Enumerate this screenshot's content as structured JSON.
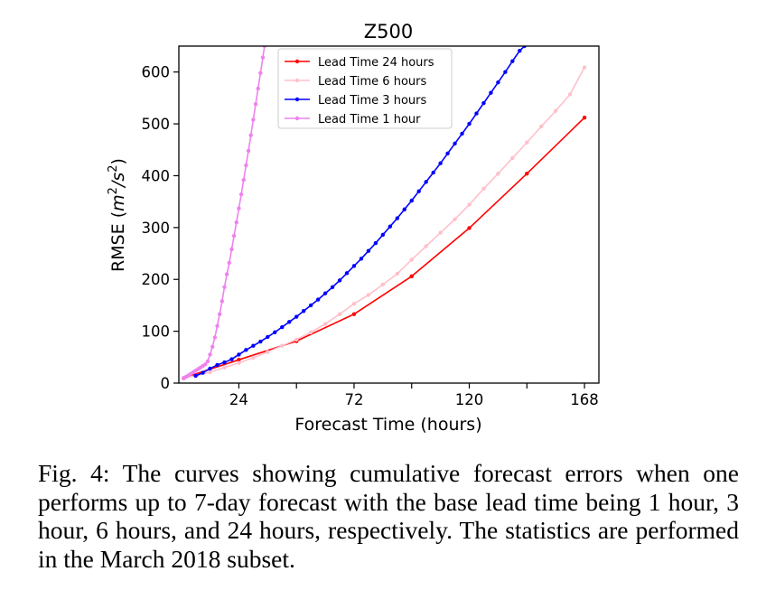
{
  "caption": "Fig. 4: The curves showing cumulative forecast errors when one performs up to 7-day forecast with the base lead time being 1 hour, 3 hour, 6 hours, and 24 hours, respectively. The statistics are performed in the March 2018 subset.",
  "chart_data": {
    "type": "line",
    "title": "Z500",
    "xlabel": "Forecast Time (hours)",
    "ylabel_text": "RMSE (",
    "ylabel_unit": {
      "base": "m",
      "sup": "2",
      "sep": "/",
      "base2": "s",
      "sup2": "2",
      "close": ")"
    },
    "xlim": [
      -1,
      174
    ],
    "ylim": [
      0,
      650
    ],
    "x_ticks": [
      24,
      72,
      120,
      168
    ],
    "x_minor_ticks": [
      48,
      96,
      144
    ],
    "y_ticks": [
      0,
      100,
      200,
      300,
      400,
      500,
      600
    ],
    "grid": false,
    "legend_position": "top",
    "series": [
      {
        "name": "Lead Time 24 hours",
        "color": "#ff0000",
        "marker_every": 24,
        "points": [
          [
            1,
            10
          ],
          [
            24,
            45
          ],
          [
            48,
            81
          ],
          [
            72,
            133
          ],
          [
            96,
            206
          ],
          [
            120,
            299
          ],
          [
            144,
            404
          ],
          [
            168,
            512
          ]
        ]
      },
      {
        "name": "Lead Time 6 hours",
        "color": "#ffc0cb",
        "marker_every": 6,
        "points": [
          [
            1,
            10
          ],
          [
            6,
            14
          ],
          [
            12,
            21
          ],
          [
            18,
            30
          ],
          [
            24,
            39
          ],
          [
            30,
            49
          ],
          [
            36,
            60
          ],
          [
            42,
            72
          ],
          [
            48,
            84
          ],
          [
            54,
            98
          ],
          [
            60,
            114
          ],
          [
            66,
            133
          ],
          [
            72,
            153
          ],
          [
            78,
            170
          ],
          [
            84,
            190
          ],
          [
            90,
            211
          ],
          [
            96,
            238
          ],
          [
            102,
            264
          ],
          [
            108,
            290
          ],
          [
            114,
            316
          ],
          [
            120,
            344
          ],
          [
            126,
            375
          ],
          [
            132,
            404
          ],
          [
            138,
            434
          ],
          [
            144,
            464
          ],
          [
            150,
            495
          ],
          [
            156,
            525
          ],
          [
            162,
            557
          ],
          [
            168,
            609
          ]
        ]
      },
      {
        "name": "Lead Time 3 hours",
        "color": "#0000ff",
        "marker_every": 3,
        "points": [
          [
            6,
            14
          ],
          [
            9,
            20
          ],
          [
            12,
            28
          ],
          [
            15,
            35
          ],
          [
            18,
            40
          ],
          [
            21,
            46
          ],
          [
            24,
            55
          ],
          [
            27,
            64
          ],
          [
            30,
            72
          ],
          [
            33,
            80
          ],
          [
            36,
            89
          ],
          [
            39,
            98
          ],
          [
            42,
            108
          ],
          [
            45,
            118
          ],
          [
            48,
            128
          ],
          [
            51,
            139
          ],
          [
            54,
            150
          ],
          [
            57,
            161
          ],
          [
            60,
            173
          ],
          [
            63,
            185
          ],
          [
            66,
            198
          ],
          [
            69,
            212
          ],
          [
            72,
            226
          ],
          [
            75,
            240
          ],
          [
            78,
            255
          ],
          [
            81,
            270
          ],
          [
            84,
            286
          ],
          [
            87,
            302
          ],
          [
            90,
            318
          ],
          [
            93,
            335
          ],
          [
            96,
            352
          ],
          [
            99,
            370
          ],
          [
            102,
            388
          ],
          [
            105,
            406
          ],
          [
            108,
            424
          ],
          [
            111,
            443
          ],
          [
            114,
            462
          ],
          [
            117,
            481
          ],
          [
            120,
            500
          ],
          [
            123,
            520
          ],
          [
            126,
            540
          ],
          [
            129,
            560
          ],
          [
            132,
            580
          ],
          [
            135,
            600
          ],
          [
            138,
            621
          ],
          [
            141,
            641
          ],
          [
            143,
            650
          ]
        ]
      },
      {
        "name": "Lead Time 1 hour",
        "color": "#ee82ee",
        "marker_every": 1,
        "points": [
          [
            1,
            9
          ],
          [
            2,
            12
          ],
          [
            3,
            15
          ],
          [
            4,
            18
          ],
          [
            5,
            21
          ],
          [
            6,
            24
          ],
          [
            7,
            27
          ],
          [
            8,
            30
          ],
          [
            9,
            33
          ],
          [
            10,
            36
          ],
          [
            11,
            42
          ],
          [
            12,
            55
          ],
          [
            13,
            70
          ],
          [
            14,
            88
          ],
          [
            15,
            110
          ],
          [
            16,
            133
          ],
          [
            17,
            158
          ],
          [
            18,
            185
          ],
          [
            19,
            210
          ],
          [
            20,
            232
          ],
          [
            21,
            258
          ],
          [
            22,
            284
          ],
          [
            23,
            310
          ],
          [
            24,
            337
          ],
          [
            25,
            364
          ],
          [
            26,
            392
          ],
          [
            27,
            420
          ],
          [
            28,
            448
          ],
          [
            29,
            478
          ],
          [
            30,
            508
          ],
          [
            31,
            538
          ],
          [
            32,
            568
          ],
          [
            33,
            598
          ],
          [
            34,
            628
          ],
          [
            34.7,
            650
          ]
        ]
      }
    ]
  }
}
